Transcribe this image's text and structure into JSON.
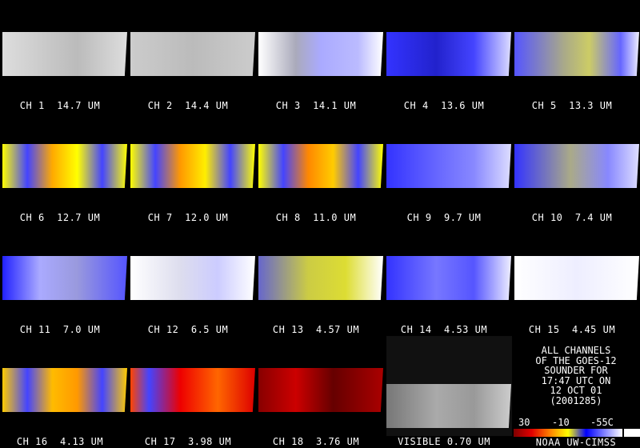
{
  "panels": [
    {
      "label": "CH 1  14.7 UM"
    },
    {
      "label": "CH 2  14.4 UM"
    },
    {
      "label": "CH 3  14.1 UM"
    },
    {
      "label": "CH 4  13.6 UM"
    },
    {
      "label": "CH 5  13.3 UM"
    },
    {
      "label": "CH 6  12.7 UM"
    },
    {
      "label": "CH 7  12.0 UM"
    },
    {
      "label": "CH 8  11.0 UM"
    },
    {
      "label": "CH 9  9.7 UM"
    },
    {
      "label": "CH 10  7.4 UM"
    },
    {
      "label": "CH 11  7.0 UM"
    },
    {
      "label": "CH 12  6.5 UM"
    },
    {
      "label": "CH 13  4.57 UM"
    },
    {
      "label": "CH 14  4.53 UM"
    },
    {
      "label": "CH 15  4.45 UM"
    },
    {
      "label": "CH 16  4.13 UM"
    },
    {
      "label": "CH 17  3.98 UM"
    },
    {
      "label": "CH 18  3.76 UM"
    },
    {
      "label": "VISIBLE 0.70 UM"
    }
  ],
  "info": {
    "lines": [
      "ALL CHANNELS",
      "OF THE GOES-12",
      "SOUNDER FOR",
      "17:47 UTC ON",
      "12 OCT 01",
      "(2001285)"
    ]
  },
  "colorbar": {
    "labels": [
      "30",
      "-10",
      "-55C"
    ]
  },
  "credit": "NOAA UW-CIMSS"
}
